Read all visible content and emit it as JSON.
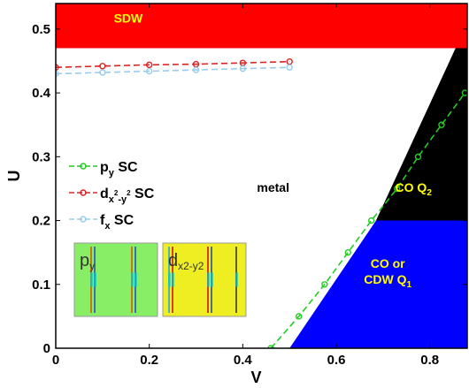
{
  "chart_data": {
    "type": "line",
    "xlabel": "V",
    "ylabel": "U",
    "xlim": [
      0,
      0.88
    ],
    "ylim": [
      0,
      0.54
    ],
    "x_ticks": [
      "0",
      "0.2",
      "0.4",
      "0.6",
      "0.8"
    ],
    "x_tick_values": [
      0,
      0.2,
      0.4,
      0.6,
      0.8
    ],
    "y_ticks": [
      "0",
      "0.1",
      "0.2",
      "0.3",
      "0.4",
      "0.5"
    ],
    "y_tick_values": [
      0,
      0.1,
      0.2,
      0.3,
      0.4,
      0.5
    ],
    "regions": [
      {
        "name": "SDW",
        "color": "#ff0000",
        "text_color": "#ffff00",
        "polygon": [
          [
            0,
            0.47
          ],
          [
            0.88,
            0.47
          ],
          [
            0.88,
            0.54
          ],
          [
            0,
            0.54
          ]
        ],
        "label_at": [
          0.155,
          0.51
        ]
      },
      {
        "name": "CO Q2",
        "text": "CO Q",
        "sub": "2",
        "color": "#000000",
        "text_color": "#ffff00",
        "polygon": [
          [
            0.685,
            0.2
          ],
          [
            0.855,
            0.47
          ],
          [
            0.88,
            0.47
          ],
          [
            0.88,
            0.2
          ]
        ],
        "label_at": [
          0.765,
          0.245
        ]
      },
      {
        "name": "CO or CDW Q1",
        "text": "CO or",
        "text2": "CDW Q",
        "sub": "1",
        "color": "#0000ff",
        "text_color": "#ffff00",
        "polygon": [
          [
            0.5,
            0
          ],
          [
            0.685,
            0.2
          ],
          [
            0.88,
            0.2
          ],
          [
            0.88,
            0
          ]
        ],
        "label_at": [
          0.71,
          0.115
        ]
      },
      {
        "name": "metal",
        "color": "#ffffff",
        "text_color": "#000000",
        "label_at": [
          0.465,
          0.245
        ]
      }
    ],
    "series": [
      {
        "name": "py SC",
        "label": "p",
        "sub": "y",
        "tail": " SC",
        "color": "#22cc22",
        "x": [
          0.46,
          0.52,
          0.575,
          0.625,
          0.675,
          0.73,
          0.775,
          0.825,
          0.875
        ],
        "y": [
          0,
          0.05,
          0.1,
          0.15,
          0.2,
          0.25,
          0.3,
          0.35,
          0.4
        ]
      },
      {
        "name": "dx2-y2 SC",
        "label": "d",
        "sub": "x",
        "sup": "2",
        "sub2": "-y",
        "sup2": "2",
        "tail": " SC",
        "color": "#dd2222",
        "x": [
          0,
          0.1,
          0.2,
          0.3,
          0.4,
          0.5
        ],
        "y": [
          0.44,
          0.442,
          0.444,
          0.445,
          0.447,
          0.449
        ]
      },
      {
        "name": "fx SC",
        "label": "f",
        "sub": "x",
        "tail": " SC",
        "color": "#99ccee",
        "x": [
          0,
          0.1,
          0.2,
          0.3,
          0.4,
          0.5
        ],
        "y": [
          0.43,
          0.432,
          0.434,
          0.436,
          0.438,
          0.44
        ]
      }
    ],
    "insets": [
      {
        "label": "p",
        "sub": "y",
        "bg": "#88ee66"
      },
      {
        "label": "d",
        "sub": "x2-y2",
        "bg": "#eeee22"
      }
    ]
  }
}
